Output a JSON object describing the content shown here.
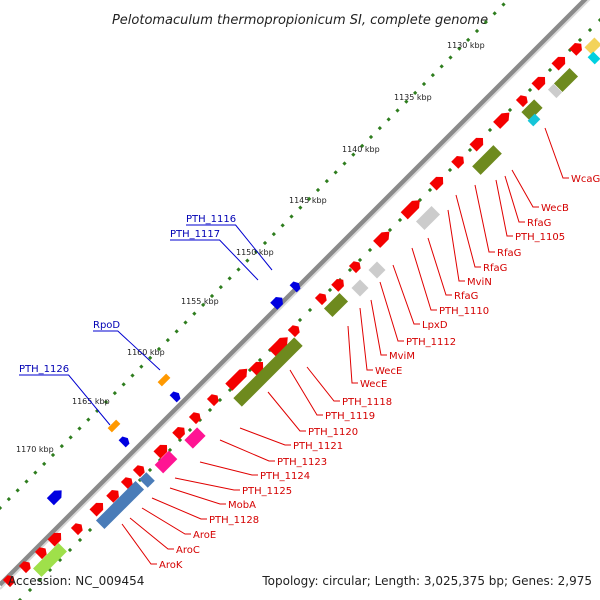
{
  "title": "Pelotomaculum thermopropionicum SI, complete genome",
  "footer": {
    "accession": "Accession: NC_009454",
    "topology": "Topology: circular; Length: 3,025,375 bp; Genes: 2,975"
  },
  "ticks": [
    "1130 kbp",
    "1135 kbp",
    "1140 kbp",
    "1145 kbp",
    "1150 kbp",
    "1155 kbp",
    "1160 kbp",
    "1165 kbp",
    "1170 kbp"
  ],
  "labels_reverse": [
    "WcaG",
    "WecB",
    "PTH_1105",
    "RfaG",
    "RfaG",
    "RfaG",
    "MviN",
    "RfaG",
    "PTH_1110",
    "LpxD",
    "PTH_1112",
    "MviM",
    "WecE",
    "WecE",
    "PTH_1118",
    "PTH_1119",
    "PTH_1120",
    "PTH_1121",
    "PTH_1123",
    "PTH_1124",
    "PTH_1125",
    "MobA",
    "PTH_1128",
    "AroE",
    "AroC",
    "AroK"
  ],
  "labels_forward": [
    "PTH_1116",
    "PTH_1117",
    "RpoD",
    "PTH_1126"
  ],
  "colors": {
    "gene_red": "#f40000",
    "blue": "#0000e0",
    "orange": "#ff9900",
    "olive": "#6e8a1e",
    "grey": "#cccccc",
    "pink": "#ff1493",
    "steel": "#4a7cb8",
    "backbone": "#8a8a8a",
    "label_red": "#d40000",
    "label_blue": "#0000b4"
  }
}
